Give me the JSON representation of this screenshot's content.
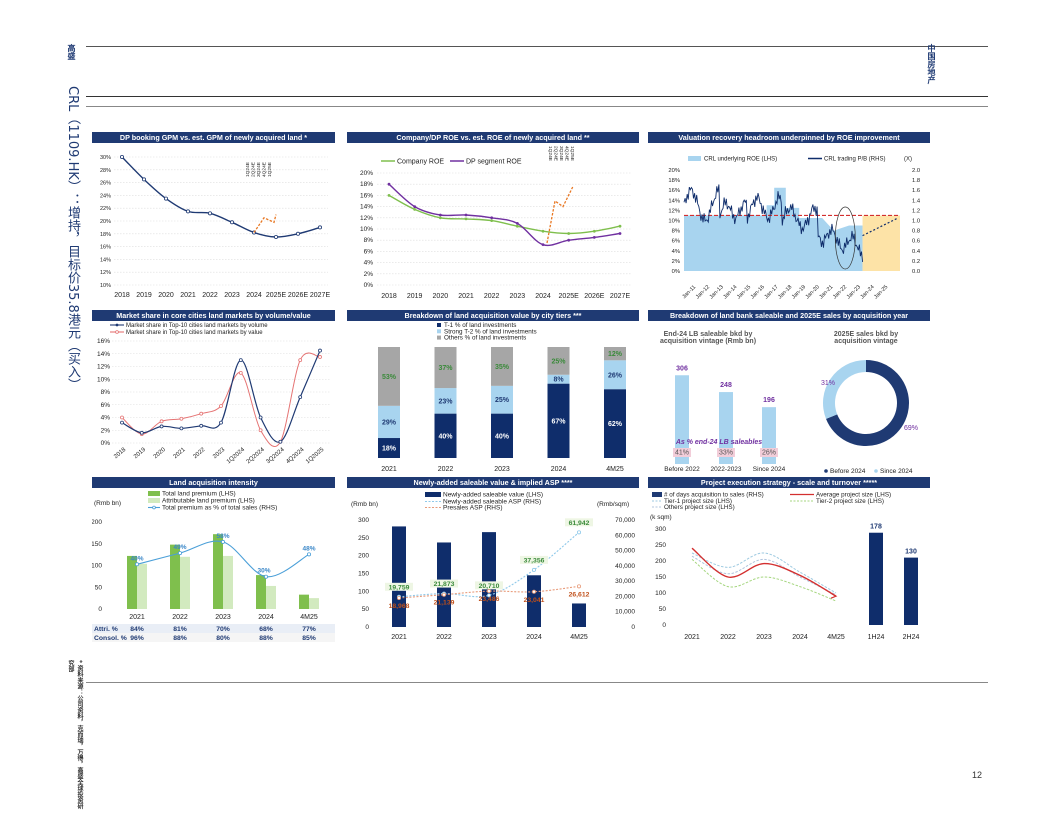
{
  "header": {
    "left_brand": "高盛",
    "right_label": "中国房地产",
    "side_title": "CRL（1109.HK）：增持，目标价35.8港元（买入）"
  },
  "footnote_side": "* 资料来源：公司资料，克而瑞，万得，高盛全球投资研究部",
  "page_number": "12",
  "panels": {
    "p1": {
      "title": "DP booking GPM vs. est. GPM of newly acquired land *",
      "x_labels": [
        "2018",
        "2019",
        "2020",
        "2021",
        "2022",
        "2023",
        "2024",
        "2025E",
        "2026E",
        "2027E"
      ],
      "y_labels": [
        "30%",
        "28%",
        "26%",
        "24%",
        "22%",
        "20%",
        "18%",
        "16%",
        "14%",
        "12%",
        "10%"
      ],
      "mini": [
        "1Q24E",
        "2Q24E",
        "3Q24E",
        "4Q24E",
        "1Q25E"
      ],
      "series_main": [
        30.0,
        26.5,
        23.5,
        21.5,
        21.2,
        19.8,
        18.2,
        17.5,
        18.0,
        19.0
      ],
      "series_orange": [
        18.2,
        20.5,
        19.8,
        21.0
      ]
    },
    "p2": {
      "title": "Company/DP ROE vs. est. ROE of newly acquired land **",
      "legend": [
        "Company ROE",
        "DP segment ROE"
      ],
      "mini": [
        "1Q24E",
        "2Q24E",
        "3Q24E",
        "4Q24E",
        "1Q25E"
      ],
      "x_labels": [
        "2018",
        "2019",
        "2020",
        "2021",
        "2022",
        "2023",
        "2024",
        "2025E",
        "2026E",
        "2027E"
      ],
      "y_labels": [
        "20%",
        "18%",
        "16%",
        "14%",
        "12%",
        "10%",
        "8%",
        "6%",
        "4%",
        "2%",
        "0%"
      ],
      "company": [
        16.0,
        13.5,
        12.0,
        11.8,
        11.5,
        10.5,
        9.6,
        9.2,
        9.6,
        10.5
      ],
      "dp": [
        18.0,
        14.0,
        12.5,
        12.5,
        12.0,
        11.0,
        7.2,
        8.0,
        8.5,
        9.2
      ],
      "orange": [
        7.5,
        15.0,
        14.0,
        17.5
      ]
    },
    "p3": {
      "title": "Valuation recovery headroom underpinned by ROE improvement",
      "legend": [
        "CRL underlying ROE (LHS)",
        "CRL trading P/B (RHS)",
        "(X)"
      ],
      "y_left": [
        "20%",
        "18%",
        "16%",
        "14%",
        "12%",
        "10%",
        "8%",
        "6%",
        "4%",
        "2%",
        "0%"
      ],
      "y_right": [
        "2.0",
        "1.8",
        "1.6",
        "1.4",
        "1.2",
        "1.0",
        "0.8",
        "0.6",
        "0.4",
        "0.2",
        "0.0"
      ],
      "x_labels": [
        "Jan-11",
        "Jan-12",
        "Jan-13",
        "Jan-14",
        "Jan-15",
        "Jan-16",
        "Jan-17",
        "Jan-18",
        "Jan-19",
        "Jan-20",
        "Jan-21",
        "Jan-22",
        "Jan-23",
        "Jan-24",
        "Jan-25"
      ]
    },
    "p4": {
      "title": "Market share in core cities land markets by volume/value",
      "legend": [
        "Market share in Top-10 cities land markets by volume",
        "Market share in Top-10 cities land markets by value"
      ],
      "y_labels": [
        "16%",
        "14%",
        "12%",
        "10%",
        "8%",
        "6%",
        "4%",
        "2%",
        "0%"
      ],
      "x_labels": [
        "2018",
        "2019",
        "2020",
        "2021",
        "2022",
        "2023",
        "1Q2024",
        "2Q2024",
        "3Q2024",
        "4Q2024",
        "1Q2025"
      ],
      "volume": [
        3.2,
        1.6,
        2.6,
        2.3,
        2.7,
        3.2,
        13.0,
        4.0,
        0.2,
        7.2,
        14.5
      ],
      "value": [
        4.0,
        1.4,
        3.4,
        3.8,
        4.6,
        5.8,
        11.0,
        2.0,
        0.2,
        13.0,
        13.5
      ]
    },
    "p5": {
      "title": "Breakdown of land acquisition value by city tiers ***",
      "legend": [
        "T-1 % of land investments",
        "Strong T-2 % of land investments",
        "Others % of land investments"
      ],
      "categories": [
        "2021",
        "2022",
        "2023",
        "2024",
        "4M25"
      ],
      "t1": [
        18,
        40,
        40,
        67,
        62
      ],
      "t2": [
        29,
        23,
        25,
        8,
        26
      ],
      "others": [
        53,
        37,
        35,
        25,
        12
      ]
    },
    "p6": {
      "title": "Breakdown of land bank saleable and 2025E sales by acquisition year",
      "left_title": "End-24 LB saleable bkd by acquisition vintage (Rmb bn)",
      "right_title": "2025E sales bkd by acquisition vintage",
      "categories": [
        "Before 2022",
        "2022-2023",
        "Since 2024"
      ],
      "values": [
        306,
        248,
        196
      ],
      "note": "As % end-24 LB saleables",
      "pcts": [
        "41%",
        "33%",
        "26%"
      ],
      "donut_labels": [
        "31%",
        "69%"
      ],
      "donut_legend": [
        "Before 2024",
        "Since 2024"
      ],
      "donut_values": [
        69,
        31
      ]
    },
    "p7": {
      "title": "Land acquisition intensity",
      "unit": "(Rmb bn)",
      "legend": [
        "Total land premium (LHS)",
        "Attributable land premium (LHS)",
        "Total premium as % of total sales (RHS)"
      ],
      "categories": [
        "2021",
        "2022",
        "2023",
        "2024",
        "4M25"
      ],
      "y_labels": [
        "200",
        "150",
        "100",
        "50",
        "0"
      ],
      "total": [
        122,
        148,
        172,
        78,
        33
      ],
      "attrib": [
        104,
        120,
        122,
        53,
        25
      ],
      "pct_labels": [
        "40%",
        "49%",
        "58%",
        "30%",
        "48%"
      ],
      "pct": [
        40,
        49,
        58,
        30,
        48
      ],
      "row1_label": "Attri. %",
      "row1": [
        "84%",
        "81%",
        "70%",
        "68%",
        "77%"
      ],
      "row2_label": "Consol. %",
      "row2": [
        "96%",
        "88%",
        "80%",
        "88%",
        "85%"
      ]
    },
    "p8": {
      "title": "Newly-added saleable value & implied ASP ****",
      "unit_left": "(Rmb bn)",
      "unit_right": "(Rmb/sqm)",
      "legend": [
        "Newly-added saleable value (LHS)",
        "Newly-added saleable ASP (RHS)",
        "Presales ASP (RHS)"
      ],
      "categories": [
        "2021",
        "2022",
        "2023",
        "2024",
        "4M25"
      ],
      "y_left": [
        "300",
        "250",
        "200",
        "150",
        "100",
        "50",
        "0"
      ],
      "y_right": [
        "70,000",
        "60,000",
        "50,000",
        "40,000",
        "30,000",
        "20,000",
        "10,000",
        "0"
      ],
      "bars": [
        282,
        237,
        266,
        145,
        66
      ],
      "asp": [
        19759,
        21873,
        20710,
        37356,
        61942
      ],
      "presales": [
        18968,
        21139,
        23486,
        23041,
        26612
      ],
      "asp_labels": [
        "19,759",
        "21,873",
        "20,710",
        "37,356",
        "61,942"
      ],
      "presales_labels": [
        "18,968",
        "21,139",
        "23,486",
        "23,041",
        "26,612"
      ]
    },
    "p9": {
      "title": "Project execution strategy - scale and turnover *****",
      "legend": [
        "# of days acquisition to sales (RHS)",
        "Tier-1 project size (LHS)",
        "Others project size (LHS)",
        "Average project size (LHS)",
        "Tier-2 project size (LHS)"
      ],
      "unit": "(k sqm)",
      "y_labels": [
        "300",
        "250",
        "200",
        "150",
        "100",
        "50",
        "0"
      ],
      "categories": [
        "2021",
        "2022",
        "2023",
        "2024",
        "4M25",
        "1H24",
        "2H24"
      ],
      "average": [
        240,
        150,
        192,
        155,
        90
      ],
      "tier1": [
        225,
        180,
        225,
        165,
        100
      ],
      "tier2": [
        205,
        120,
        150,
        120,
        75
      ],
      "others": [
        215,
        160,
        205,
        150,
        95
      ],
      "days": [
        178,
        130
      ],
      "days_labels": [
        "178",
        "130"
      ]
    }
  },
  "colors": {
    "navy": "#1f3a73",
    "dark_navy": "#0f2d6b",
    "light_blue": "#a8d4ef",
    "grey": "#a6a6a6",
    "green": "#7fbf4d",
    "light_green": "#d2eabf",
    "orange": "#e87722",
    "red": "#c8102e",
    "purple": "#7030a0",
    "pink": "#f2cdd9",
    "tan": "#fde3a7"
  }
}
